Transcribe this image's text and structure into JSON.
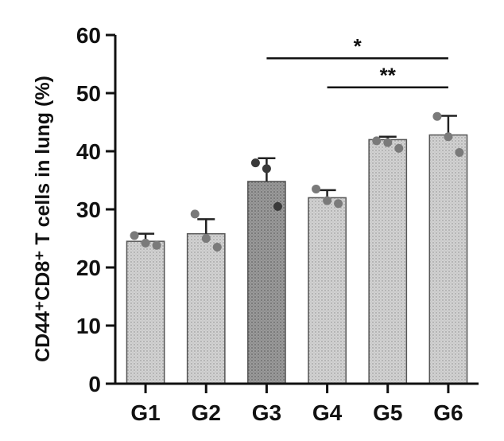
{
  "chart_data": {
    "type": "bar",
    "categories": [
      "G1",
      "G2",
      "G3",
      "G4",
      "G5",
      "G6"
    ],
    "values": [
      24.5,
      25.8,
      34.8,
      32.0,
      42.0,
      42.8
    ],
    "errors": [
      1.3,
      2.5,
      4.0,
      1.3,
      0.5,
      3.3
    ],
    "points": [
      [
        25.5,
        24.2,
        23.8
      ],
      [
        29.2,
        25.0,
        23.5
      ],
      [
        38.0,
        37.0,
        30.5
      ],
      [
        33.5,
        31.5,
        31.0
      ],
      [
        41.8,
        41.5,
        40.5
      ],
      [
        46.0,
        42.5,
        39.8
      ]
    ],
    "xlabel": "",
    "ylabel": "CD44⁺CD8⁺ T cells in lung (%)",
    "ylim": [
      0,
      60
    ],
    "yticks": [
      0,
      10,
      20,
      30,
      40,
      50,
      60
    ],
    "grid": false,
    "bar_color": "#d2d2d2",
    "highlight_color": "#9a9a9a",
    "significance": [
      {
        "from": "G3",
        "to": "G6",
        "label": "*",
        "y": 56
      },
      {
        "from": "G4",
        "to": "G6",
        "label": "**",
        "y": 51
      }
    ]
  }
}
